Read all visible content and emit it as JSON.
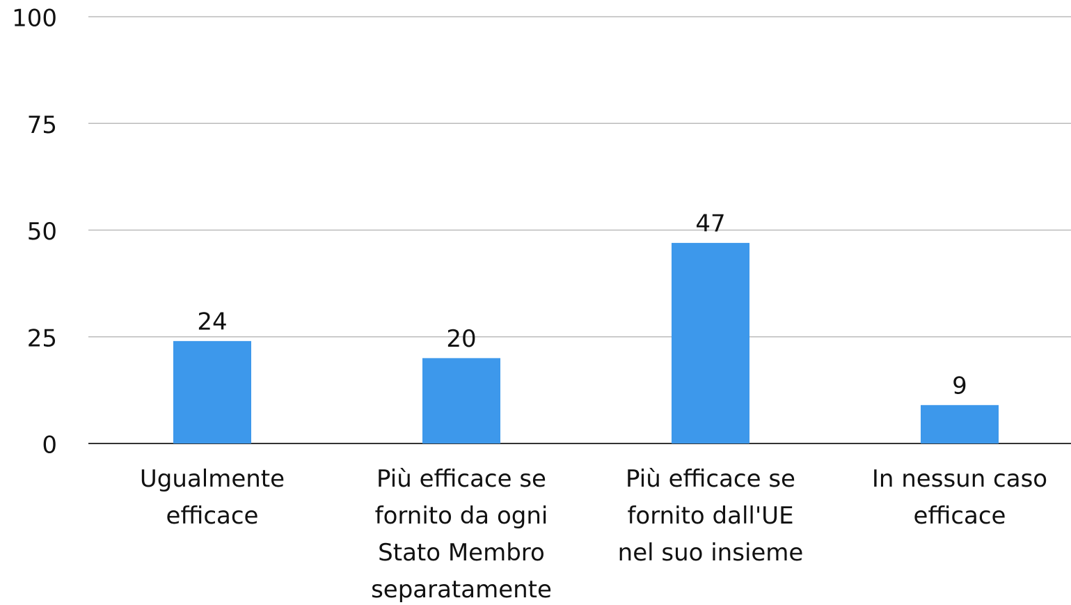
{
  "chart_data": {
    "type": "bar",
    "categories": [
      "Ugualmente efficace",
      "Più efficace se fornito da ogni Stato Membro separatamente",
      "Più efficace se fornito dall'UE nel suo insieme",
      "In nessun caso efficace"
    ],
    "values": [
      24,
      20,
      47,
      9
    ],
    "color": "#3d98eb",
    "ylim": [
      0,
      100
    ],
    "yticks": [
      0,
      25,
      50,
      75,
      100
    ],
    "grid": true
  }
}
